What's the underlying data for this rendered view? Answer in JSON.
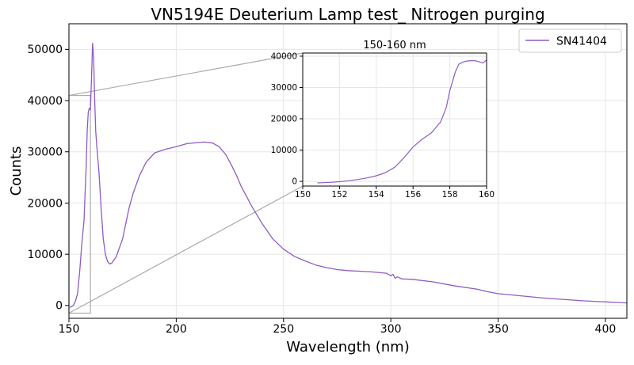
{
  "chart_data": [
    {
      "type": "line",
      "title": "VN5194E Deuterium Lamp test_ Nitrogen purging",
      "xlabel": "Wavelength (nm)",
      "ylabel": "Counts",
      "xlim": [
        150,
        410
      ],
      "ylim": [
        -2500,
        55000
      ],
      "xticks": [
        150,
        200,
        250,
        300,
        350,
        400
      ],
      "yticks": [
        0,
        10000,
        20000,
        30000,
        40000,
        50000
      ],
      "xtick_labels": [
        "150",
        "200",
        "250",
        "300",
        "350",
        "400"
      ],
      "ytick_labels": [
        "0",
        "10000",
        "20000",
        "30000",
        "40000",
        "50000"
      ],
      "grid": true,
      "legend": "top-right",
      "series": [
        {
          "name": "SN41404",
          "color": "#8e5bc4",
          "x": [
            150.5,
            152,
            153,
            154,
            155,
            156,
            157,
            158,
            158.5,
            159,
            159.5,
            160,
            160.5,
            161,
            161.5,
            162,
            162.5,
            163,
            164,
            165,
            166,
            167,
            168,
            169,
            170,
            172,
            175,
            178,
            180,
            183,
            186,
            190,
            195,
            200,
            205,
            210,
            213,
            217,
            220,
            223,
            225,
            228,
            230,
            235,
            240,
            245,
            250,
            255,
            260,
            265,
            270,
            275,
            280,
            285,
            290,
            295,
            298,
            300,
            301,
            302,
            303,
            305,
            310,
            320,
            330,
            340,
            345,
            350,
            360,
            370,
            380,
            390,
            400,
            405,
            410
          ],
          "y": [
            -400,
            0,
            800,
            2300,
            6500,
            12000,
            16500,
            27000,
            34000,
            37800,
            38500,
            38200,
            44000,
            51200,
            48500,
            40000,
            34000,
            31000,
            26000,
            19000,
            13000,
            10000,
            8600,
            8100,
            8300,
            9500,
            13000,
            19000,
            22000,
            25500,
            28000,
            29800,
            30500,
            31000,
            31600,
            31800,
            31900,
            31700,
            31000,
            29500,
            28000,
            25500,
            23500,
            19500,
            16000,
            13000,
            11000,
            9600,
            8700,
            7900,
            7400,
            7000,
            6800,
            6700,
            6600,
            6400,
            6300,
            5800,
            6100,
            5300,
            5600,
            5200,
            5100,
            4600,
            3800,
            3200,
            2700,
            2300,
            1900,
            1500,
            1200,
            900,
            700,
            600,
            500
          ]
        }
      ]
    },
    {
      "type": "line",
      "title": "150-160 nm",
      "xlabel": "",
      "ylabel": "",
      "xlim": [
        150,
        160
      ],
      "ylim": [
        -1500,
        41000
      ],
      "xticks": [
        150,
        152,
        154,
        156,
        158,
        160
      ],
      "yticks": [
        0,
        10000,
        20000,
        30000,
        40000
      ],
      "xtick_labels": [
        "150",
        "152",
        "154",
        "156",
        "158",
        "160"
      ],
      "ytick_labels": [
        "0",
        "10000",
        "20000",
        "30000",
        "40000"
      ],
      "grid": true,
      "series": [
        {
          "color": "#8e5bc4",
          "x": [
            150.8,
            151,
            151.5,
            152,
            152.5,
            153,
            153.5,
            154,
            154.5,
            155,
            155.5,
            156,
            156.5,
            157,
            157.5,
            157.8,
            158,
            158.3,
            158.5,
            158.8,
            159,
            159.3,
            159.5,
            159.8,
            160
          ],
          "y": [
            -500,
            -450,
            -300,
            -100,
            200,
            600,
            1100,
            1800,
            2800,
            4500,
            7500,
            11000,
            13500,
            15500,
            19000,
            23500,
            29000,
            35000,
            37500,
            38300,
            38500,
            38600,
            38400,
            37800,
            38800
          ]
        }
      ]
    }
  ]
}
